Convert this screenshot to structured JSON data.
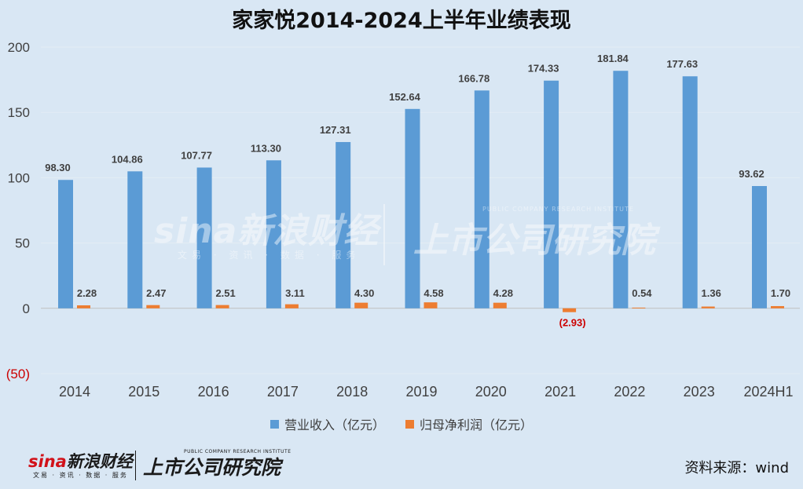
{
  "chart_data": {
    "type": "bar",
    "title": "家家悦2014-2024上半年业绩表现",
    "categories": [
      "2014",
      "2015",
      "2016",
      "2017",
      "2018",
      "2019",
      "2020",
      "2021",
      "2022",
      "2023",
      "2024H1"
    ],
    "series": [
      {
        "name": "营业收入（亿元）",
        "color": "#5b9bd5",
        "values": [
          98.3,
          104.86,
          107.77,
          113.3,
          127.31,
          152.64,
          166.78,
          174.33,
          181.84,
          177.63,
          93.62
        ],
        "labels": [
          "98.30",
          "104.86",
          "107.77",
          "113.30",
          "127.31",
          "152.64",
          "166.78",
          "174.33",
          "181.84",
          "177.63",
          "93.62"
        ]
      },
      {
        "name": "归母净利润（亿元）",
        "color": "#ed7d31",
        "values": [
          2.28,
          2.47,
          2.51,
          3.11,
          4.3,
          4.58,
          4.28,
          -2.93,
          0.54,
          1.36,
          1.7
        ],
        "labels": [
          "2.28",
          "2.47",
          "2.51",
          "3.11",
          "4.30",
          "4.58",
          "4.28",
          "(2.93)",
          "0.54",
          "1.36",
          "1.70"
        ]
      }
    ],
    "ylim": [
      -50,
      200
    ],
    "yticks": [
      -50,
      0,
      50,
      100,
      150,
      200
    ],
    "ytick_labels": [
      "(50)",
      "0",
      "50",
      "100",
      "150",
      "200"
    ],
    "legend": "bottom",
    "grid": true
  },
  "watermark": {
    "left": "sina新浪财经",
    "left_sub": "文易 · 资讯 · 数据 · 服务",
    "right": "上市公司研究院",
    "right_small": "PUBLIC COMPANY RESEARCH INSTITUTE"
  },
  "footer": {
    "logo_sina": "sina",
    "logo_cn": "新浪财经",
    "logo_sub": "文易 · 资讯 · 数据 · 服务",
    "logo_right": "上市公司研究院",
    "logo_right_small": "PUBLIC COMPANY RESEARCH INSTITUTE",
    "source": "资料来源：wind"
  }
}
